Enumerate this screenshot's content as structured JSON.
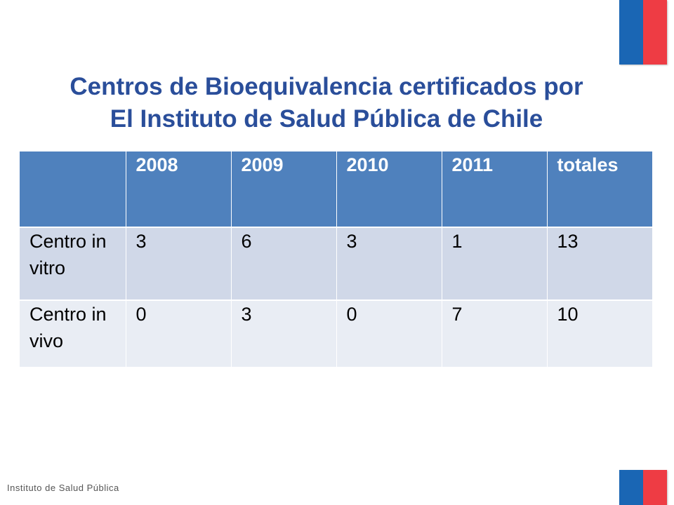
{
  "title": {
    "line1": "Centros de Bioequivalencia certificados por",
    "line2": "El Instituto de Salud Pública de Chile"
  },
  "table": {
    "headers": [
      "",
      "2008",
      "2009",
      "2010",
      "2011",
      "totales"
    ],
    "rows": [
      {
        "label": "Centro in vitro",
        "values": [
          "3",
          "6",
          "3",
          "1",
          "13"
        ]
      },
      {
        "label": "Centro in vivo",
        "values": [
          "0",
          "3",
          "0",
          "7",
          "10"
        ]
      }
    ]
  },
  "footer": {
    "text": "Instituto de Salud Pública"
  },
  "colors": {
    "title": "#2A4E9A",
    "header_bg": "#4F81BD",
    "row_a_bg": "#D0D8E8",
    "row_b_bg": "#E9EDF4",
    "flag_blue": "#1A66B4",
    "flag_red": "#EE3C44"
  }
}
